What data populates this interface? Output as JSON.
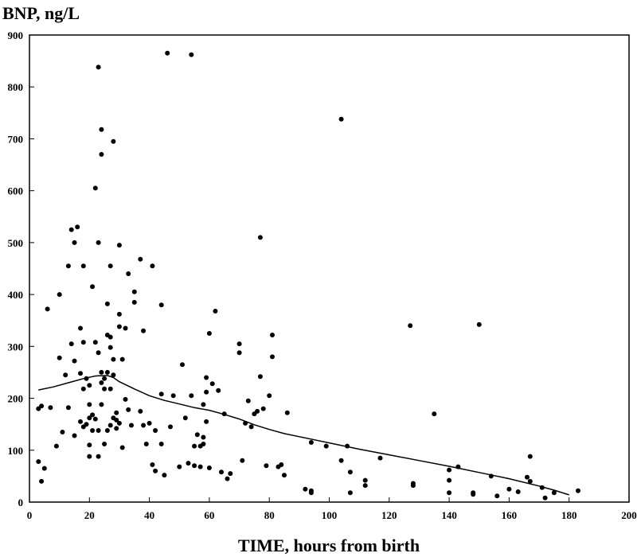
{
  "chart_data": {
    "type": "scatter",
    "title": "",
    "ylabel": "BNP, ng/L",
    "xlabel": "TIME, hours from birth",
    "xlim": [
      0,
      200
    ],
    "ylim": [
      0,
      900
    ],
    "x_ticks": [
      0,
      20,
      40,
      60,
      80,
      100,
      120,
      140,
      160,
      180,
      200
    ],
    "y_ticks": [
      0,
      100,
      200,
      300,
      400,
      500,
      600,
      700,
      800,
      900
    ],
    "grid": false,
    "legend": "none",
    "point_color": "#000000",
    "series": [
      {
        "type": "scatter",
        "points": [
          [
            3,
            180
          ],
          [
            3,
            78
          ],
          [
            4,
            40
          ],
          [
            4,
            185
          ],
          [
            5,
            65
          ],
          [
            6,
            372
          ],
          [
            7,
            182
          ],
          [
            9,
            108
          ],
          [
            10,
            400
          ],
          [
            10,
            278
          ],
          [
            11,
            135
          ],
          [
            12,
            245
          ],
          [
            13,
            455
          ],
          [
            13,
            182
          ],
          [
            14,
            525
          ],
          [
            14,
            305
          ],
          [
            15,
            272
          ],
          [
            15,
            128
          ],
          [
            15,
            500
          ],
          [
            16,
            530
          ],
          [
            17,
            335
          ],
          [
            17,
            248
          ],
          [
            17,
            155
          ],
          [
            18,
            218
          ],
          [
            18,
            145
          ],
          [
            18,
            308
          ],
          [
            18,
            455
          ],
          [
            19,
            238
          ],
          [
            19,
            150
          ],
          [
            20,
            110
          ],
          [
            20,
            88
          ],
          [
            20,
            188
          ],
          [
            20,
            225
          ],
          [
            20,
            162
          ],
          [
            21,
            138
          ],
          [
            21,
            168
          ],
          [
            21,
            415
          ],
          [
            22,
            605
          ],
          [
            22,
            160
          ],
          [
            22,
            308
          ],
          [
            23,
            838
          ],
          [
            23,
            500
          ],
          [
            23,
            88
          ],
          [
            23,
            138
          ],
          [
            23,
            288
          ],
          [
            24,
            718
          ],
          [
            24,
            670
          ],
          [
            24,
            250
          ],
          [
            24,
            230
          ],
          [
            24,
            188
          ],
          [
            25,
            238
          ],
          [
            25,
            218
          ],
          [
            25,
            112
          ],
          [
            26,
            322
          ],
          [
            26,
            382
          ],
          [
            26,
            138
          ],
          [
            26,
            250
          ],
          [
            27,
            455
          ],
          [
            27,
            318
          ],
          [
            27,
            298
          ],
          [
            27,
            218
          ],
          [
            27,
            148
          ],
          [
            28,
            695
          ],
          [
            28,
            275
          ],
          [
            28,
            245
          ],
          [
            28,
            162
          ],
          [
            29,
            142
          ],
          [
            29,
            172
          ],
          [
            29,
            158
          ],
          [
            30,
            495
          ],
          [
            30,
            362
          ],
          [
            30,
            338
          ],
          [
            30,
            152
          ],
          [
            31,
            105
          ],
          [
            31,
            275
          ],
          [
            32,
            335
          ],
          [
            32,
            198
          ],
          [
            33,
            440
          ],
          [
            33,
            178
          ],
          [
            34,
            148
          ],
          [
            35,
            385
          ],
          [
            35,
            405
          ],
          [
            37,
            468
          ],
          [
            37,
            175
          ],
          [
            38,
            330
          ],
          [
            38,
            148
          ],
          [
            39,
            112
          ],
          [
            40,
            152
          ],
          [
            41,
            455
          ],
          [
            41,
            72
          ],
          [
            42,
            60
          ],
          [
            42,
            138
          ],
          [
            44,
            380
          ],
          [
            44,
            112
          ],
          [
            44,
            208
          ],
          [
            45,
            52
          ],
          [
            46,
            865
          ],
          [
            47,
            145
          ],
          [
            48,
            205
          ],
          [
            50,
            68
          ],
          [
            51,
            265
          ],
          [
            52,
            162
          ],
          [
            53,
            75
          ],
          [
            54,
            862
          ],
          [
            54,
            205
          ],
          [
            55,
            108
          ],
          [
            55,
            70
          ],
          [
            56,
            130
          ],
          [
            57,
            108
          ],
          [
            57,
            68
          ],
          [
            58,
            188
          ],
          [
            58,
            125
          ],
          [
            58,
            112
          ],
          [
            59,
            240
          ],
          [
            59,
            212
          ],
          [
            59,
            155
          ],
          [
            60,
            325
          ],
          [
            60,
            66
          ],
          [
            61,
            228
          ],
          [
            62,
            368
          ],
          [
            63,
            215
          ],
          [
            64,
            58
          ],
          [
            65,
            170
          ],
          [
            66,
            45
          ],
          [
            67,
            55
          ],
          [
            70,
            305
          ],
          [
            70,
            288
          ],
          [
            71,
            80
          ],
          [
            72,
            152
          ],
          [
            73,
            195
          ],
          [
            74,
            145
          ],
          [
            75,
            170
          ],
          [
            76,
            175
          ],
          [
            77,
            510
          ],
          [
            77,
            242
          ],
          [
            78,
            180
          ],
          [
            79,
            70
          ],
          [
            80,
            205
          ],
          [
            81,
            322
          ],
          [
            81,
            280
          ],
          [
            83,
            68
          ],
          [
            84,
            72
          ],
          [
            85,
            52
          ],
          [
            86,
            172
          ],
          [
            92,
            25
          ],
          [
            94,
            22
          ],
          [
            94,
            18
          ],
          [
            94,
            115
          ],
          [
            99,
            108
          ],
          [
            104,
            738
          ],
          [
            104,
            80
          ],
          [
            106,
            108
          ],
          [
            107,
            58
          ],
          [
            107,
            18
          ],
          [
            112,
            32
          ],
          [
            112,
            42
          ],
          [
            117,
            85
          ],
          [
            127,
            340
          ],
          [
            128,
            32
          ],
          [
            128,
            36
          ],
          [
            135,
            170
          ],
          [
            140,
            62
          ],
          [
            140,
            42
          ],
          [
            140,
            18
          ],
          [
            143,
            68
          ],
          [
            148,
            18
          ],
          [
            148,
            15
          ],
          [
            150,
            342
          ],
          [
            154,
            50
          ],
          [
            156,
            12
          ],
          [
            160,
            25
          ],
          [
            163,
            20
          ],
          [
            166,
            48
          ],
          [
            167,
            40
          ],
          [
            167,
            88
          ],
          [
            171,
            28
          ],
          [
            172,
            8
          ],
          [
            175,
            18
          ],
          [
            183,
            22
          ]
        ]
      },
      {
        "type": "line",
        "points": [
          [
            3,
            216
          ],
          [
            8,
            222
          ],
          [
            13,
            230
          ],
          [
            18,
            238
          ],
          [
            22,
            243
          ],
          [
            26,
            244
          ],
          [
            28,
            240
          ],
          [
            30,
            232
          ],
          [
            35,
            218
          ],
          [
            40,
            205
          ],
          [
            45,
            196
          ],
          [
            50,
            189
          ],
          [
            55,
            182
          ],
          [
            60,
            177
          ],
          [
            65,
            169
          ],
          [
            70,
            160
          ],
          [
            75,
            149
          ],
          [
            80,
            140
          ],
          [
            85,
            132
          ],
          [
            90,
            126
          ],
          [
            95,
            120
          ],
          [
            100,
            114
          ],
          [
            110,
            102
          ],
          [
            120,
            91
          ],
          [
            130,
            80
          ],
          [
            140,
            69
          ],
          [
            150,
            57
          ],
          [
            160,
            45
          ],
          [
            170,
            31
          ],
          [
            175,
            23
          ],
          [
            180,
            14
          ]
        ]
      }
    ]
  }
}
